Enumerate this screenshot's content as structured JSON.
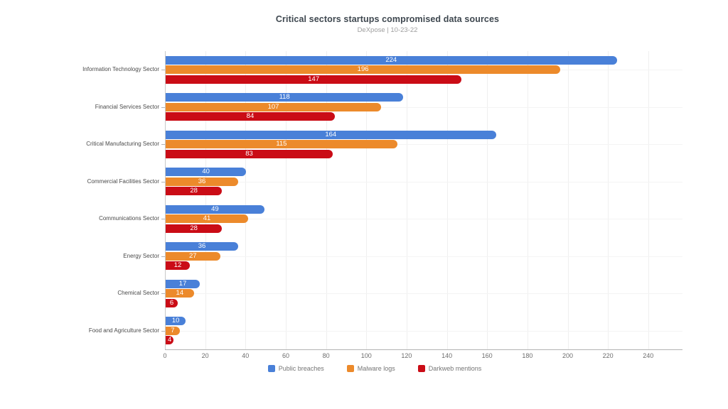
{
  "chart_data": {
    "type": "bar",
    "orientation": "horizontal",
    "title": "Critical sectors startups compromised data sources",
    "subtitle": "DeXpose | 10-23-22",
    "categories": [
      "Information Technology Sector",
      "Financial Services Sector",
      "Critical Manufacturing Sector",
      "Commercial Facilities Sector",
      "Communications Sector",
      "Energy Sector",
      "Chemical Sector",
      "Food and Agriculture Sector"
    ],
    "series": [
      {
        "name": "Public breaches",
        "color": "#4980d8",
        "values": [
          224,
          118,
          164,
          40,
          49,
          36,
          17,
          10
        ]
      },
      {
        "name": "Malware logs",
        "color": "#ec8a2b",
        "values": [
          196,
          107,
          115,
          36,
          41,
          27,
          14,
          7
        ]
      },
      {
        "name": "Darkweb mentions",
        "color": "#ca0c16",
        "values": [
          147,
          84,
          83,
          28,
          28,
          12,
          6,
          4
        ]
      }
    ],
    "x_ticks": [
      0,
      20,
      40,
      60,
      80,
      100,
      120,
      140,
      160,
      180,
      200,
      220,
      240
    ],
    "xlim": [
      0,
      257
    ],
    "grid": true,
    "legend_position": "bottom",
    "value_labels": "inside-center-white",
    "colors": {
      "title": "#3e474f",
      "subtitle": "#9e9e9e",
      "axis_line": "#b3b3b3",
      "grid_line": "#efefef",
      "tick_label": "#6d6d6d",
      "category_label": "#4a4a4a",
      "value_label": "#ffffff"
    }
  }
}
